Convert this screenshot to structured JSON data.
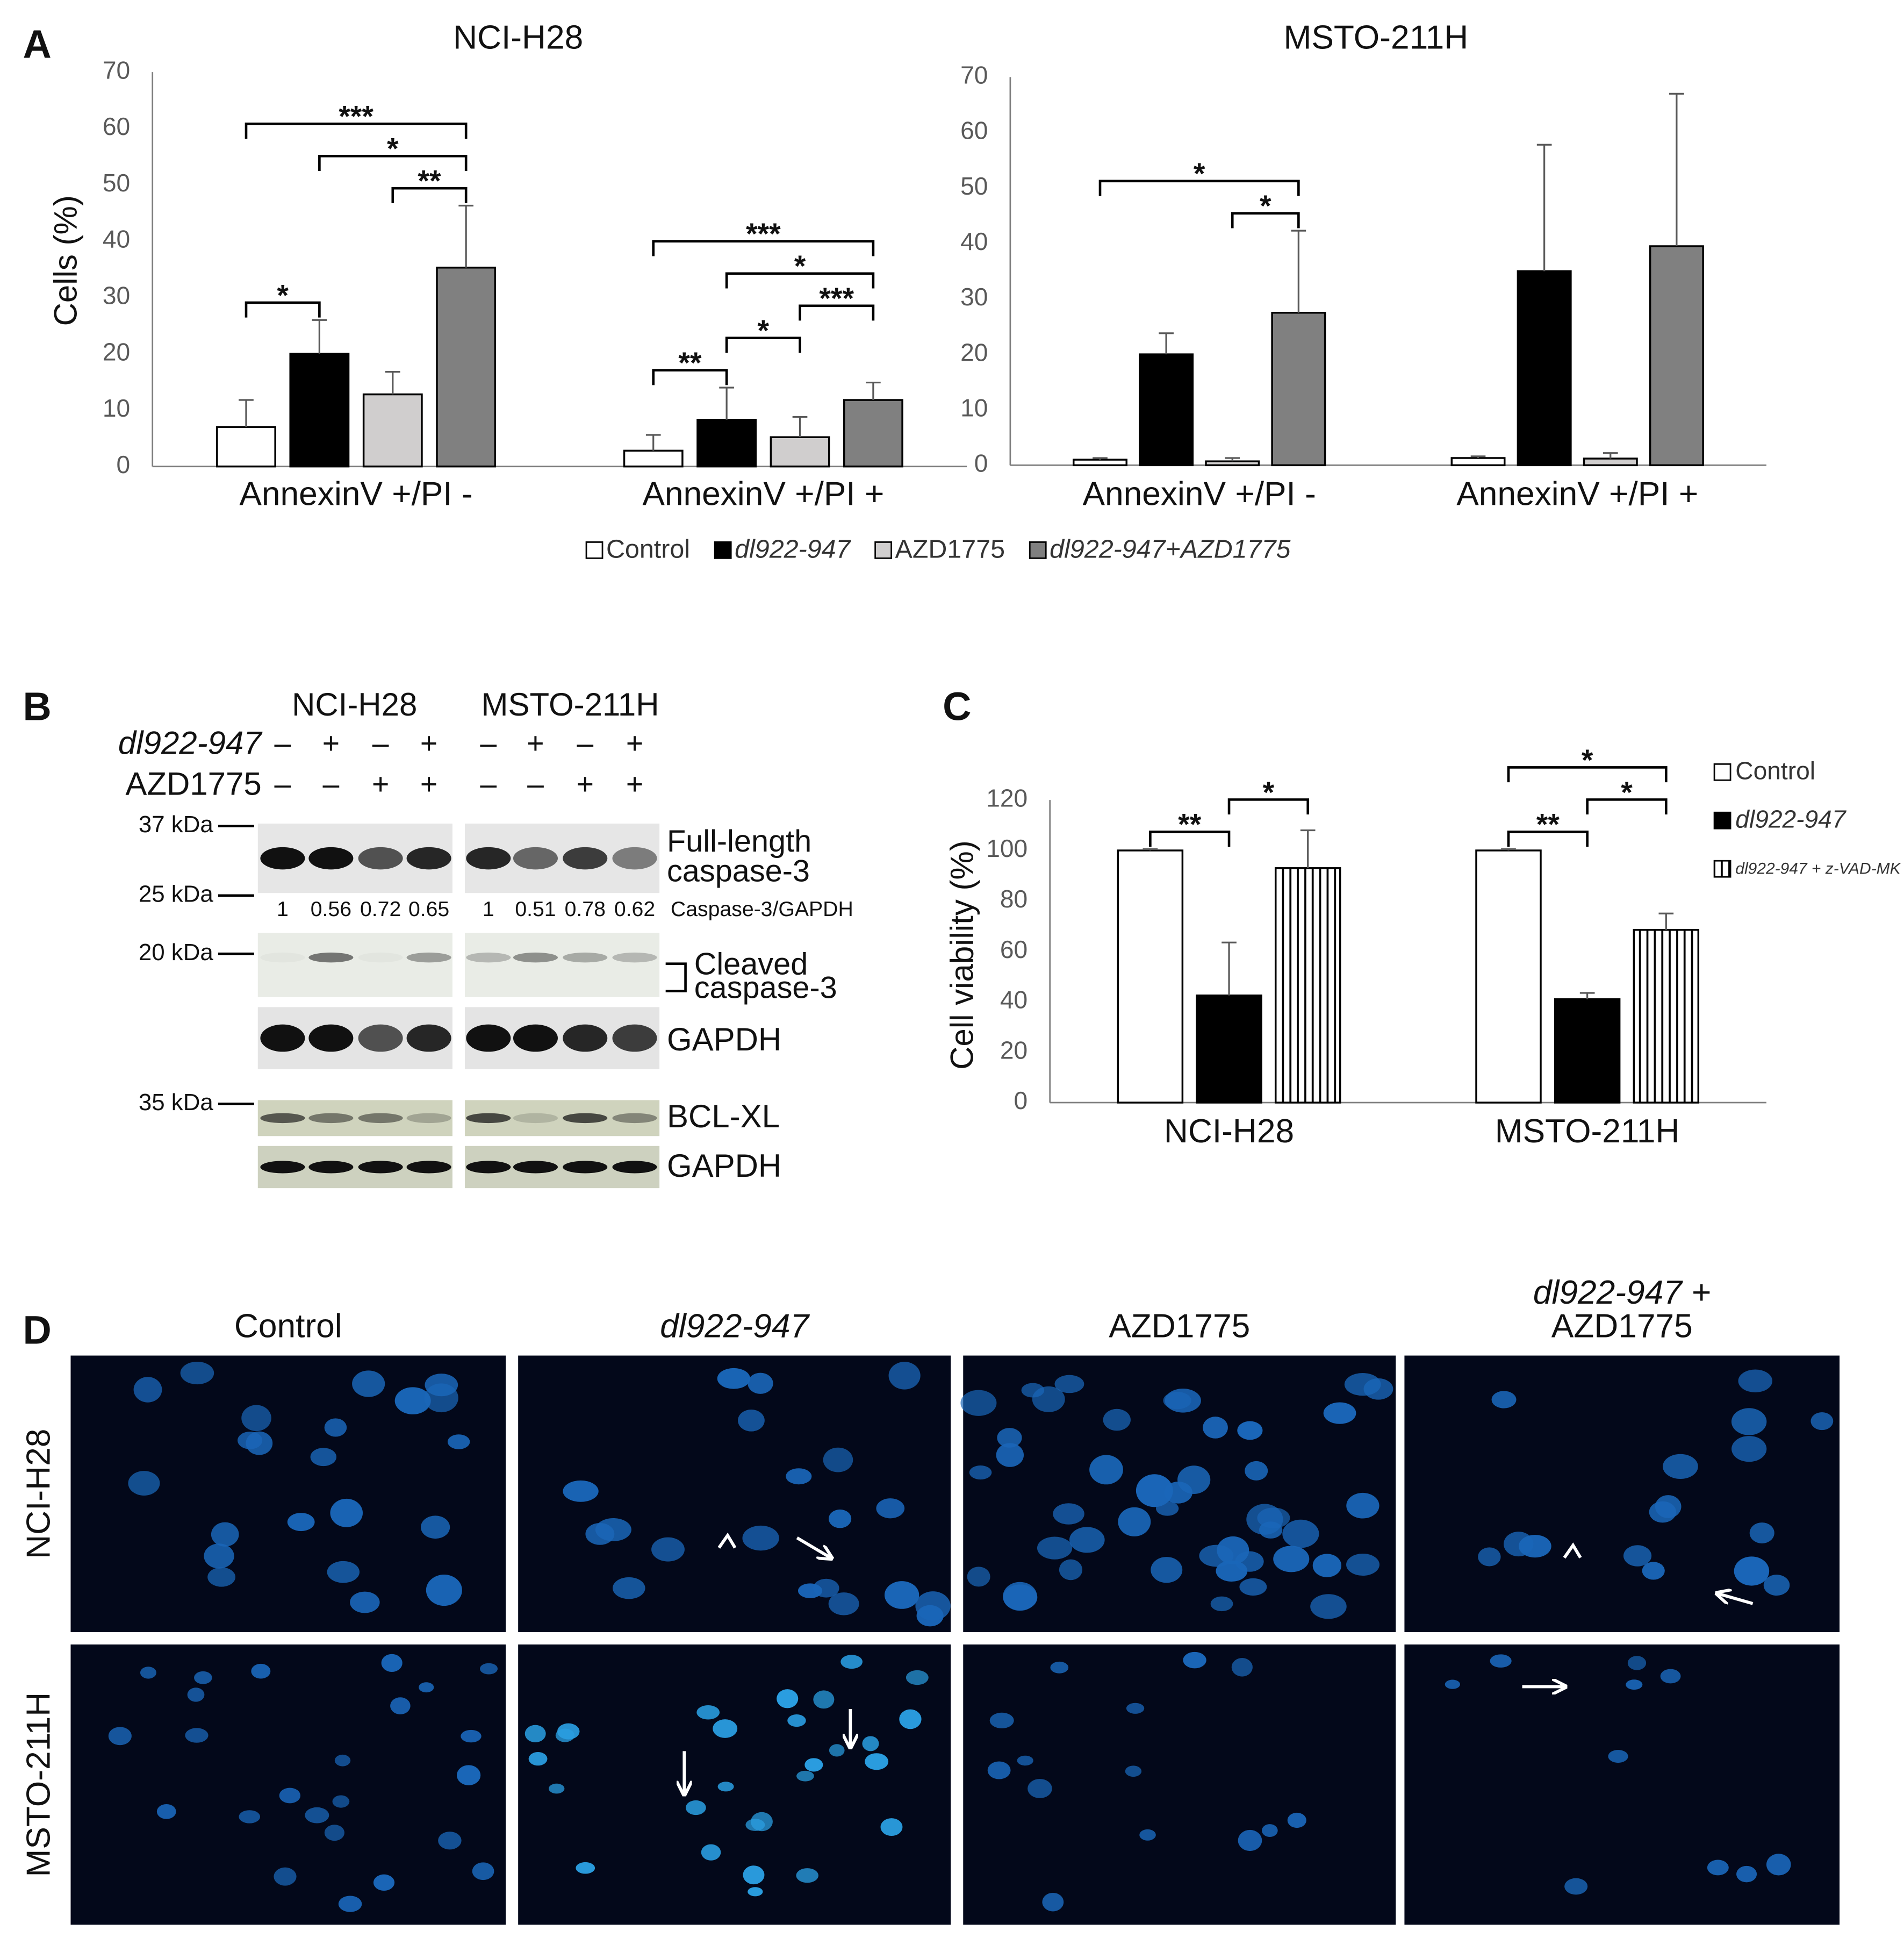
{
  "panel_labels": [
    "A",
    "B",
    "C",
    "D"
  ],
  "chart_data": [
    {
      "type": "bar",
      "title": "NCI-H28",
      "y_label": "Cells (%)",
      "categories": [
        "AnnexinV +/PI -",
        "AnnexinV +/PI +"
      ],
      "series": [
        {
          "name": "Control",
          "color": "#ffffff",
          "values": [
            7,
            2.8
          ],
          "errors": [
            4.8,
            2.8
          ]
        },
        {
          "name": "dl922-947",
          "italic": true,
          "color": "#000000",
          "values": [
            20,
            8.3
          ],
          "errors": [
            6,
            5.7
          ]
        },
        {
          "name": "AZD1775",
          "color": "#d0cece",
          "values": [
            12.8,
            5.2
          ],
          "errors": [
            4,
            3.6
          ]
        },
        {
          "name": "dl922-947+AZD1775",
          "italic": true,
          "color": "#808080",
          "values": [
            35.3,
            11.8
          ],
          "errors": [
            11,
            3.1
          ]
        }
      ],
      "ylim": [
        0,
        70
      ],
      "yticks": [
        0,
        10,
        20,
        30,
        40,
        50,
        60,
        70
      ],
      "grid": false,
      "legend": "bottom",
      "significance": [
        {
          "category": 0,
          "from": 0,
          "to": 1,
          "label": "*"
        },
        {
          "category": 0,
          "from": 2,
          "to": 3,
          "label": "**"
        },
        {
          "category": 0,
          "from": 1,
          "to": 3,
          "label": "*"
        },
        {
          "category": 0,
          "from": 0,
          "to": 3,
          "label": "***"
        },
        {
          "category": 1,
          "from": 0,
          "to": 1,
          "label": "**"
        },
        {
          "category": 1,
          "from": 1,
          "to": 2,
          "label": "*"
        },
        {
          "category": 1,
          "from": 2,
          "to": 3,
          "label": "***"
        },
        {
          "category": 1,
          "from": 1,
          "to": 3,
          "label": "*"
        },
        {
          "category": 1,
          "from": 0,
          "to": 3,
          "label": "***"
        }
      ]
    },
    {
      "type": "bar",
      "title": "MSTO-211H",
      "categories": [
        "AnnexinV +/PI -",
        "AnnexinV +/PI +"
      ],
      "series": [
        {
          "color": "#ffffff",
          "values": [
            1,
            1.3
          ],
          "errors": [
            0.3,
            0.3
          ]
        },
        {
          "color": "#000000",
          "values": [
            20,
            35
          ],
          "errors": [
            3.8,
            22.8
          ]
        },
        {
          "color": "#d0cece",
          "values": [
            0.7,
            1.2
          ],
          "errors": [
            0.6,
            1
          ]
        },
        {
          "color": "#808080",
          "values": [
            27.5,
            39.5
          ],
          "errors": [
            14.8,
            27.5
          ]
        }
      ],
      "ylim": [
        0,
        70
      ],
      "yticks": [
        0,
        10,
        20,
        30,
        40,
        50,
        60,
        70
      ],
      "grid": false,
      "significance": [
        {
          "category": 0,
          "from": 2,
          "to": 3,
          "label": "*"
        },
        {
          "category": 0,
          "from": 0,
          "to": 3,
          "label": "*"
        }
      ]
    },
    {
      "type": "bar",
      "y_label": "Cell viability (%)",
      "categories": [
        "NCI-H28",
        "MSTO-211H"
      ],
      "series": [
        {
          "name": "Control",
          "color": "#ffffff",
          "values": [
            100,
            100
          ],
          "errors": [
            0.5,
            0.5
          ]
        },
        {
          "name": "dl922-947",
          "italic": true,
          "color": "#000000",
          "values": [
            42.5,
            41
          ],
          "errors": [
            21,
            2.5
          ]
        },
        {
          "name": "dl922-947 + z-VAD-MK",
          "italic": true,
          "color": "#ffffff",
          "pattern": "vertical-lines",
          "values": [
            93,
            68.5
          ],
          "errors": [
            15,
            6.5
          ]
        }
      ],
      "ylim": [
        0,
        120
      ],
      "yticks": [
        0,
        20,
        40,
        60,
        80,
        100,
        120
      ],
      "grid": false,
      "legend": "right",
      "significance": [
        {
          "category": 0,
          "from": 0,
          "to": 1,
          "label": "**"
        },
        {
          "category": 0,
          "from": 1,
          "to": 2,
          "label": "*"
        },
        {
          "category": 1,
          "from": 0,
          "to": 1,
          "label": "**"
        },
        {
          "category": 1,
          "from": 1,
          "to": 2,
          "label": "*"
        },
        {
          "category": 1,
          "from": 0,
          "to": 2,
          "label": "*"
        }
      ]
    }
  ],
  "blot": {
    "columns": [
      "NCI-H28",
      "MSTO-211H"
    ],
    "rows": [
      {
        "label": "dl922-947",
        "italic": true,
        "signs": [
          "–",
          "+",
          "–",
          "+",
          "–",
          "+",
          "–",
          "+"
        ]
      },
      {
        "label": "AZD1775",
        "signs": [
          "–",
          "–",
          "+",
          "+",
          "–",
          "–",
          "+",
          "+"
        ]
      }
    ],
    "markers": [
      "37 kDa",
      "25 kDa",
      "20 kDa",
      "35 kDa"
    ],
    "band_labels": [
      [
        "Full-length",
        "caspase-3"
      ],
      [
        "Cleaved",
        "caspase-3"
      ],
      [
        "GAPDH"
      ],
      [
        "BCL-XL"
      ],
      [
        "GAPDH"
      ]
    ],
    "ratios": [
      1,
      0.56,
      0.72,
      0.65,
      1,
      0.51,
      0.78,
      0.62
    ],
    "ratio_label": "Caspase-3/GAPDH"
  },
  "micrographs": {
    "columns": [
      {
        "lines": [
          "Control"
        ]
      },
      {
        "lines": [
          "dl922-947"
        ],
        "italic": true
      },
      {
        "lines": [
          "AZD1775"
        ]
      },
      {
        "lines": [
          "dl922-947 +",
          "AZD1775"
        ],
        "italic": true
      }
    ],
    "rows": [
      "NCI-H28",
      "MSTO-211H"
    ]
  }
}
